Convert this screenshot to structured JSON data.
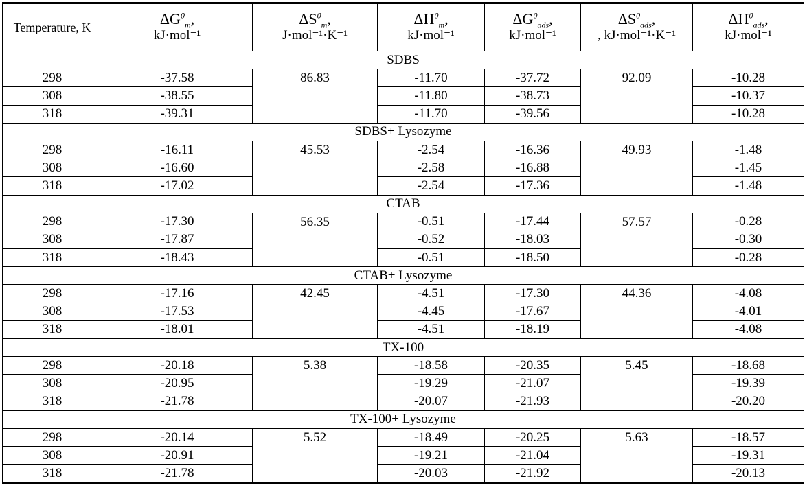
{
  "header": {
    "temperature": "Temperature, K",
    "columns": [
      {
        "symbol": "ΔG",
        "sup": "0",
        "sub": "m",
        "unit": "kJ·mol⁻¹"
      },
      {
        "symbol": "ΔS",
        "sup": "0",
        "sub": "m",
        "unit": "J·mol⁻¹·K⁻¹"
      },
      {
        "symbol": "ΔH",
        "sup": "0",
        "sub": "m",
        "unit": "kJ·mol⁻¹"
      },
      {
        "symbol": "ΔG",
        "sup": "0",
        "sub": "ads",
        "unit": "kJ·mol⁻¹"
      },
      {
        "symbol": "ΔS",
        "sup": "0",
        "sub": "ads",
        "unit": ", kJ·mol⁻¹·K⁻¹"
      },
      {
        "symbol": "ΔH",
        "sup": "0",
        "sub": "ads",
        "unit": "kJ·mol⁻¹"
      }
    ]
  },
  "groups": [
    {
      "name": "SDBS",
      "rows": [
        [
          "298",
          "-37.58",
          "86.83",
          "-11.70",
          "-37.72",
          "92.09",
          "-10.28"
        ],
        [
          "308",
          "-38.55",
          "",
          "-11.80",
          "-38.73",
          "",
          "-10.37"
        ],
        [
          "318",
          "-39.31",
          "",
          "-11.70",
          "-39.56",
          "",
          "-10.28"
        ]
      ]
    },
    {
      "name": "SDBS+ Lysozyme",
      "rows": [
        [
          "298",
          "-16.11",
          "45.53",
          "-2.54",
          "-16.36",
          "49.93",
          "-1.48"
        ],
        [
          "308",
          "-16.60",
          "",
          "-2.58",
          "-16.88",
          "",
          "-1.45"
        ],
        [
          "318",
          "-17.02",
          "",
          "-2.54",
          "-17.36",
          "",
          "-1.48"
        ]
      ]
    },
    {
      "name": "CTAB",
      "rows": [
        [
          "298",
          "-17.30",
          "56.35",
          "-0.51",
          "-17.44",
          "57.57",
          "-0.28"
        ],
        [
          "308",
          "-17.87",
          "",
          "-0.52",
          "-18.03",
          "",
          "-0.30"
        ],
        [
          "318",
          "-18.43",
          "",
          "-0.51",
          "-18.50",
          "",
          "-0.28"
        ]
      ]
    },
    {
      "name": "CTAB+ Lysozyme",
      "rows": [
        [
          "298",
          "-17.16",
          "42.45",
          "-4.51",
          "-17.30",
          "44.36",
          "-4.08"
        ],
        [
          "308",
          "-17.53",
          "",
          "-4.45",
          "-17.67",
          "",
          "-4.01"
        ],
        [
          "318",
          "-18.01",
          "",
          "-4.51",
          "-18.19",
          "",
          "-4.08"
        ]
      ]
    },
    {
      "name": "TX-100",
      "rows": [
        [
          "298",
          "-20.18",
          "5.38",
          "-18.58",
          "-20.35",
          "5.45",
          "-18.68"
        ],
        [
          "308",
          "-20.95",
          "",
          "-19.29",
          "-21.07",
          "",
          "-19.39"
        ],
        [
          "318",
          "-21.78",
          "",
          "-20.07",
          "-21.93",
          "",
          "-20.20"
        ]
      ]
    },
    {
      "name": "TX-100+ Lysozyme",
      "rows": [
        [
          "298",
          "-20.14",
          "5.52",
          "-18.49",
          "-20.25",
          "5.63",
          "-18.57"
        ],
        [
          "308",
          "-20.91",
          "",
          "-19.21",
          "-21.04",
          "",
          "-19.31"
        ],
        [
          "318",
          "-21.78",
          "",
          "-20.03",
          "-21.92",
          "",
          "-20.13"
        ]
      ]
    }
  ]
}
